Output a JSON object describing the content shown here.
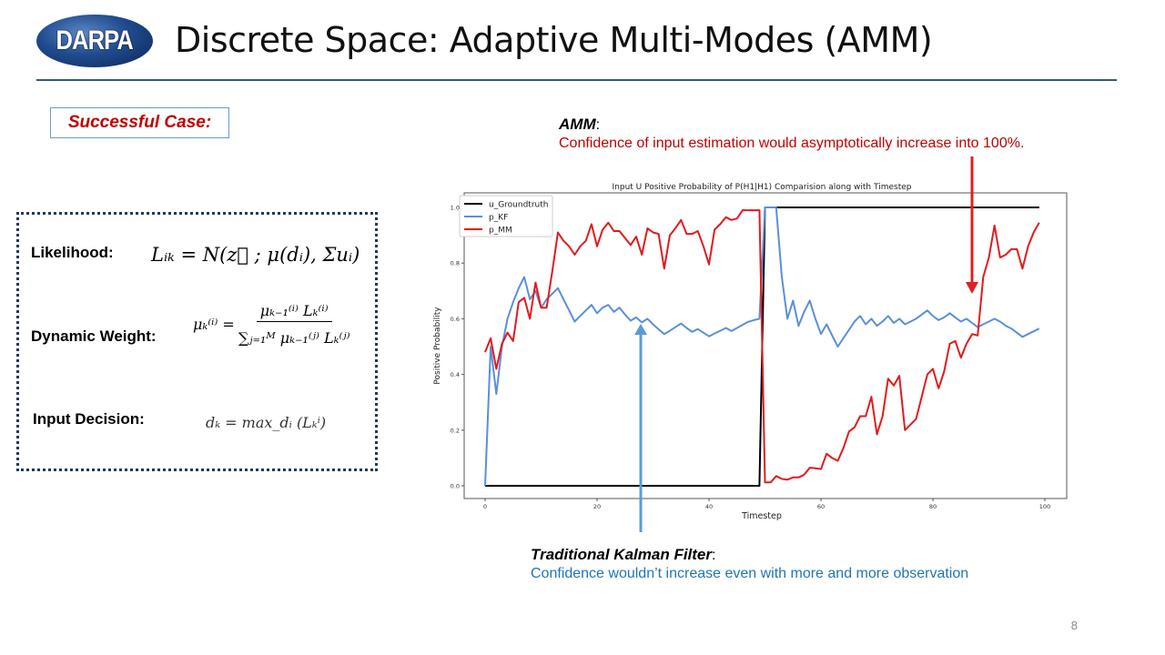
{
  "header": {
    "logo_text": "DARPA",
    "title": "Discrete Space: Adaptive Multi-Modes (AMM)"
  },
  "case_label": "Successful Case:",
  "formulas": {
    "likelihood_label": "Likelihood:",
    "likelihood_expr": "Lᵢₖ = N(z⃗ ; μ(dᵢ), Σuᵢ)",
    "dynamic_weight_label": "Dynamic Weight:",
    "dynamic_weight_lhs": "μₖ⁽ⁱ⁾ =",
    "dynamic_weight_num": "μₖ₋₁⁽ⁱ⁾ Lₖ⁽ⁱ⁾",
    "dynamic_weight_den": "∑ⱼ₌₁ᴹ μₖ₋₁⁽ʲ⁾ Lₖ⁽ʲ⁾",
    "input_decision_label": "Input Decision:",
    "input_decision_expr": "dₖ = max_dᵢ (Lₖⁱ)"
  },
  "annotations": {
    "amm_head": "AMM",
    "amm_text": "Confidence of input estimation would asymptotically increase into 100%.",
    "kf_head": "Traditional Kalman Filter",
    "kf_text": "Confidence wouldn’t increase even with more and more observation"
  },
  "page_number": "8",
  "colors": {
    "groundtruth": "#000000",
    "kf": "#5b8fd9",
    "mm": "#e31a1c",
    "amm_arrow": "#e02020",
    "kf_arrow": "#5b9bd5"
  },
  "chart_data": {
    "type": "line",
    "title": "Input U Positive Probability of P(H1|H1) Comparision along with Timestep",
    "xlabel": "Timestep",
    "ylabel": "Positive Probability",
    "xlim": [
      -4,
      103
    ],
    "ylim": [
      -0.05,
      1.05
    ],
    "xticks": [
      0,
      20,
      40,
      60,
      80,
      100
    ],
    "yticks": [
      "0.0",
      "0.2",
      "0.4",
      "0.6",
      "0.8",
      "1.0"
    ],
    "legend_position": "top-left",
    "grid": false,
    "series": [
      {
        "name": "u_Groundtruth",
        "color": "#000000",
        "values": [
          0,
          0,
          0,
          0,
          0,
          0,
          0,
          0,
          0,
          0,
          0,
          0,
          0,
          0,
          0,
          0,
          0,
          0,
          0,
          0,
          0,
          0,
          0,
          0,
          0,
          0,
          0,
          0,
          0,
          0,
          0,
          0,
          0,
          0,
          0,
          0,
          0,
          0,
          0,
          0,
          0,
          0,
          0,
          0,
          0,
          0,
          0,
          0,
          0,
          0,
          1,
          1,
          1,
          1,
          1,
          1,
          1,
          1,
          1,
          1,
          1,
          1,
          1,
          1,
          1,
          1,
          1,
          1,
          1,
          1,
          1,
          1,
          1,
          1,
          1,
          1,
          1,
          1,
          1,
          1,
          1,
          1,
          1,
          1,
          1,
          1,
          1,
          1,
          1,
          1,
          1,
          1,
          1,
          1,
          1,
          1,
          1,
          1,
          1,
          1
        ]
      },
      {
        "name": "p_KF",
        "color": "#5b8fd9",
        "values": [
          0,
          0.5,
          0.33,
          0.5,
          0.6,
          0.66,
          0.71,
          0.75,
          0.67,
          0.7,
          0.64,
          0.67,
          0.69,
          0.71,
          0.67,
          0.63,
          0.59,
          0.61,
          0.63,
          0.65,
          0.62,
          0.64,
          0.65,
          0.625,
          0.64,
          0.615,
          0.593,
          0.605,
          0.587,
          0.6,
          0.58,
          0.562,
          0.545,
          0.557,
          0.57,
          0.583,
          0.567,
          0.553,
          0.563,
          0.55,
          0.537,
          0.547,
          0.557,
          0.567,
          0.556,
          0.567,
          0.578,
          0.589,
          0.595,
          0.6,
          1.0,
          1.0,
          1.0,
          0.75,
          0.6,
          0.665,
          0.575,
          0.625,
          0.665,
          0.6,
          0.545,
          0.58,
          0.54,
          0.5,
          0.53,
          0.56,
          0.59,
          0.61,
          0.58,
          0.6,
          0.575,
          0.59,
          0.61,
          0.585,
          0.6,
          0.58,
          0.59,
          0.6,
          0.615,
          0.63,
          0.61,
          0.595,
          0.605,
          0.62,
          0.605,
          0.59,
          0.6,
          0.585,
          0.57,
          0.58,
          0.59,
          0.6,
          0.59,
          0.575,
          0.565,
          0.55,
          0.535,
          0.545,
          0.555,
          0.565
        ]
      },
      {
        "name": "p_MM",
        "color": "#e31a1c",
        "values": [
          0.48,
          0.53,
          0.42,
          0.51,
          0.55,
          0.52,
          0.66,
          0.675,
          0.6,
          0.73,
          0.64,
          0.64,
          0.77,
          0.91,
          0.88,
          0.86,
          0.83,
          0.86,
          0.88,
          0.94,
          0.86,
          0.92,
          0.945,
          0.915,
          0.915,
          0.89,
          0.865,
          0.895,
          0.83,
          0.925,
          0.91,
          0.905,
          0.78,
          0.9,
          0.925,
          0.955,
          0.905,
          0.905,
          0.915,
          0.86,
          0.795,
          0.92,
          0.94,
          0.965,
          0.955,
          0.96,
          0.99,
          0.99,
          0.99,
          0.99,
          0.012,
          0.012,
          0.035,
          0.025,
          0.022,
          0.03,
          0.03,
          0.04,
          0.065,
          0.063,
          0.06,
          0.115,
          0.1,
          0.09,
          0.135,
          0.195,
          0.21,
          0.25,
          0.25,
          0.32,
          0.185,
          0.25,
          0.385,
          0.36,
          0.395,
          0.2,
          0.22,
          0.24,
          0.32,
          0.4,
          0.42,
          0.35,
          0.41,
          0.51,
          0.52,
          0.46,
          0.51,
          0.545,
          0.54,
          0.75,
          0.82,
          0.935,
          0.82,
          0.83,
          0.85,
          0.85,
          0.78,
          0.86,
          0.91,
          0.945
        ]
      }
    ]
  }
}
